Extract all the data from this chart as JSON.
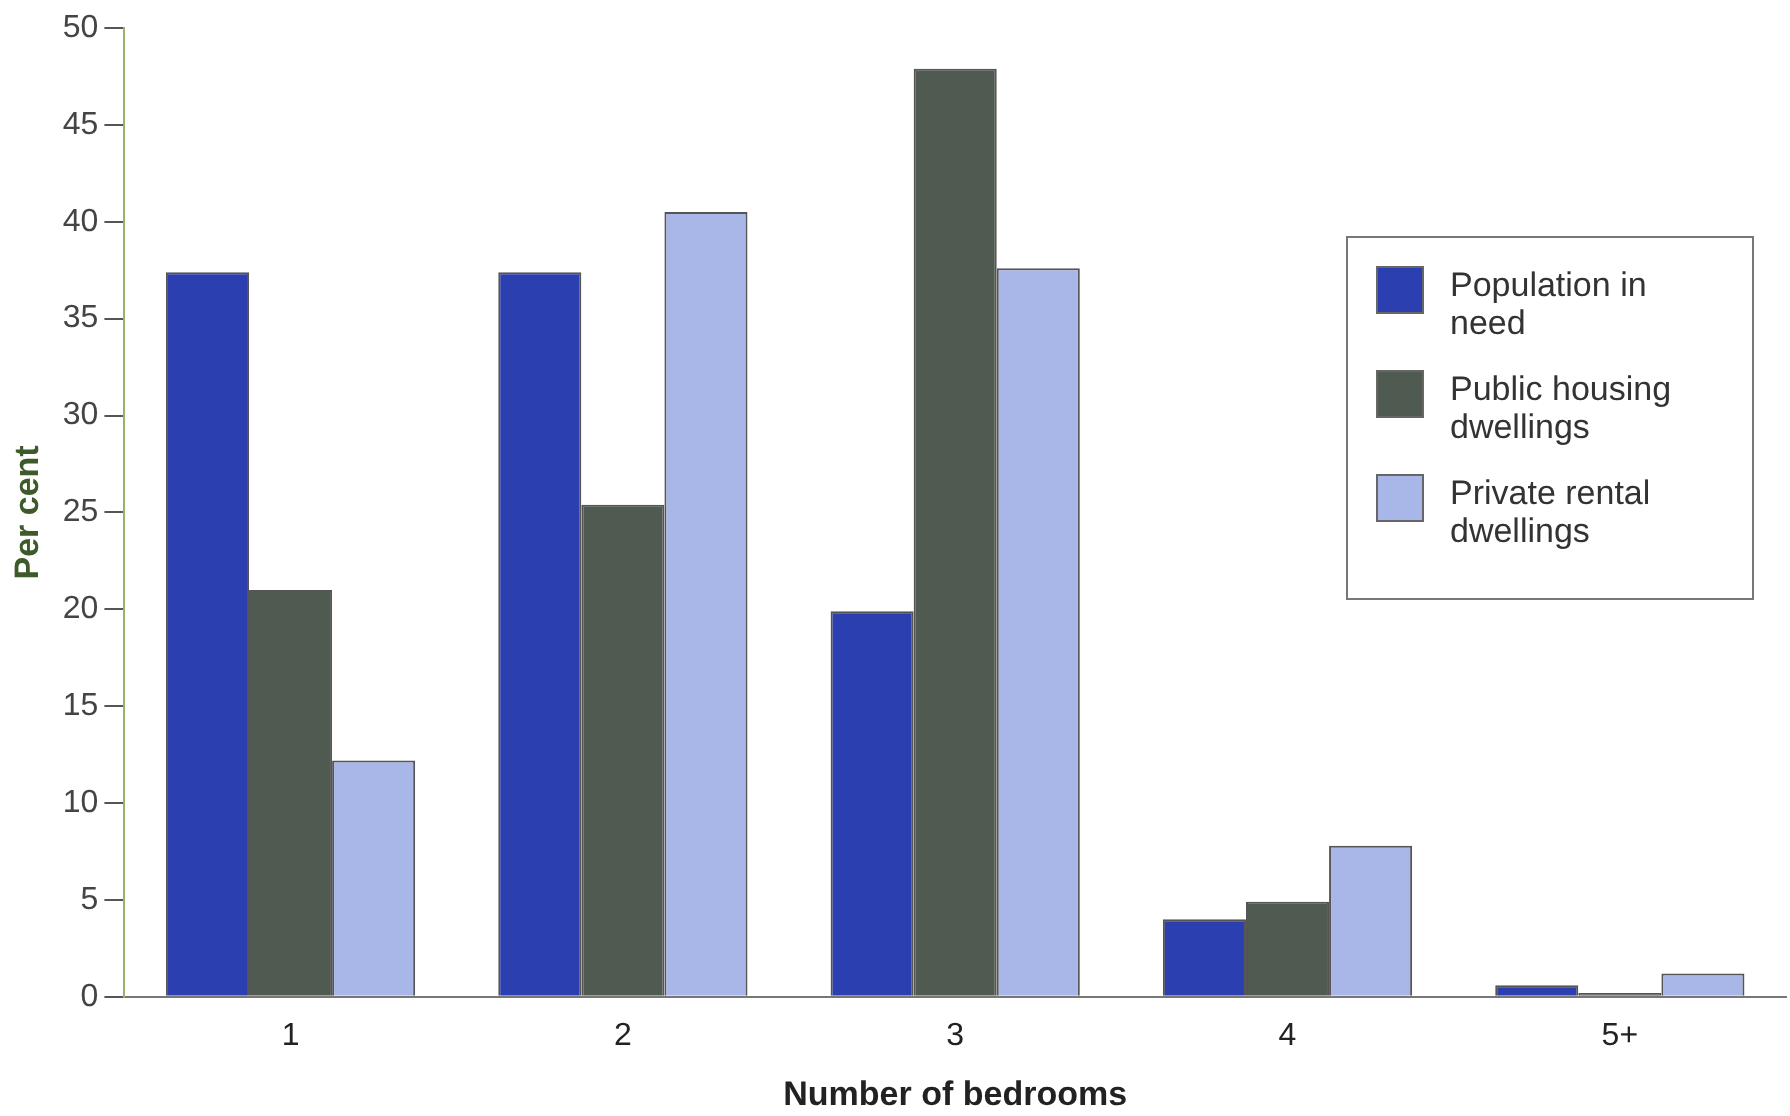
{
  "chart_data": {
    "type": "bar",
    "xlabel": "Number of bedrooms",
    "ylabel": "Per cent",
    "categories": [
      "1",
      "2",
      "3",
      "4",
      "5+"
    ],
    "series": [
      {
        "name": "Population in need",
        "color": "#2b3fb0",
        "values": [
          37.4,
          37.4,
          19.9,
          4.0,
          0.6
        ]
      },
      {
        "name": "Public housing dwellings",
        "color": "#4f5a50",
        "values": [
          21.0,
          25.4,
          47.9,
          4.9,
          0.2
        ]
      },
      {
        "name": "Private rental dwellings",
        "color": "#a8b6e8",
        "values": [
          12.2,
          40.5,
          37.6,
          7.8,
          1.2
        ]
      }
    ],
    "ylim": [
      0,
      50
    ],
    "yticks": [
      0,
      5,
      10,
      15,
      20,
      25,
      30,
      35,
      40,
      45,
      50
    ],
    "grid": false,
    "legend": "right"
  }
}
